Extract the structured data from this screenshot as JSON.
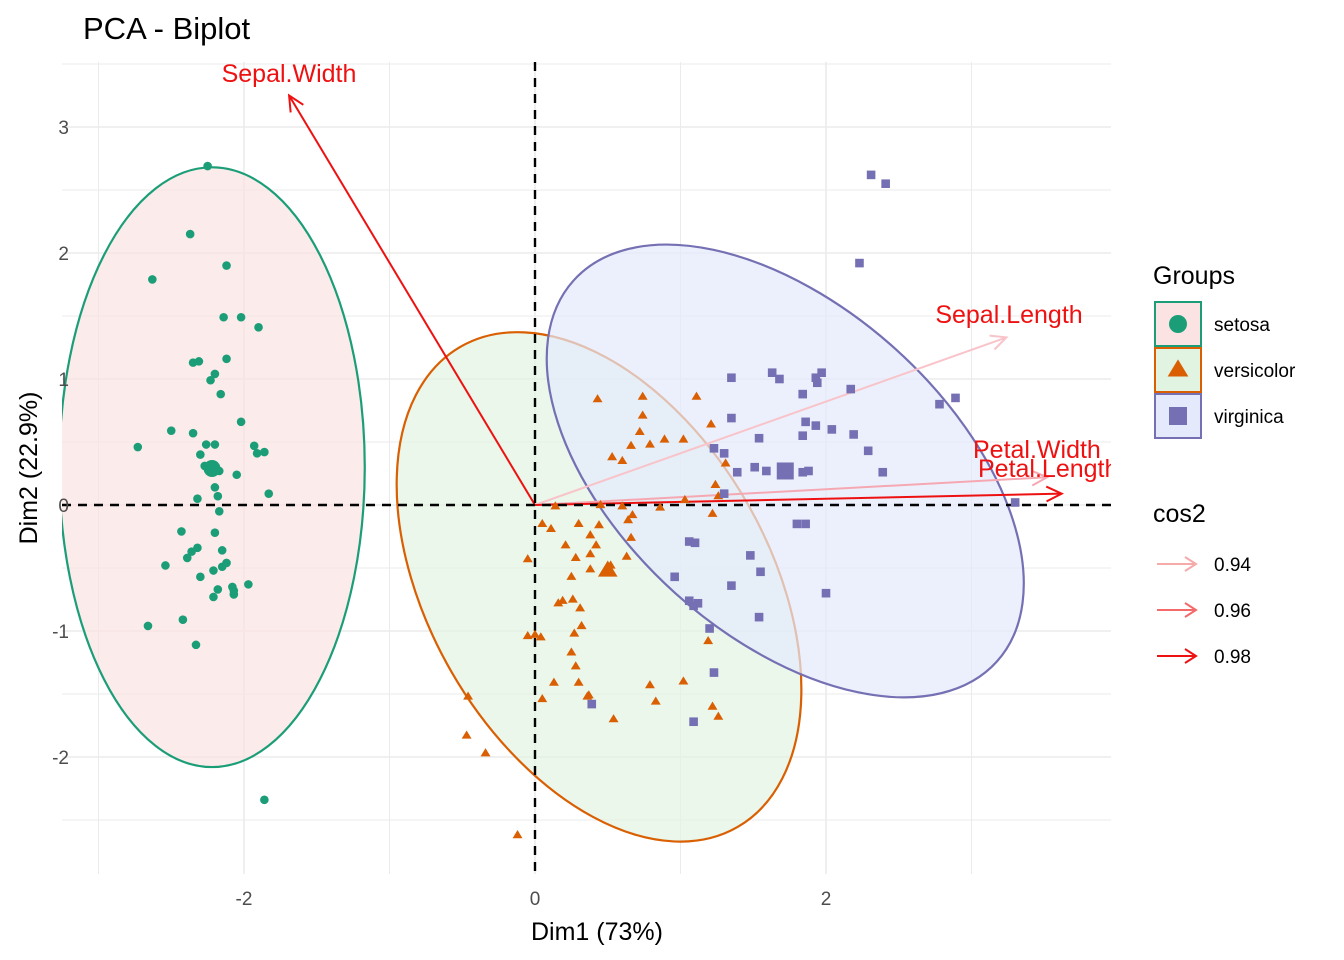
{
  "chart_data": {
    "type": "scatter",
    "title": "PCA - Biplot",
    "xlabel": "Dim1 (73%)",
    "ylabel": "Dim2 (22.9%)",
    "xlim": [
      -3.02,
      3.91
    ],
    "ylim": [
      -2.96,
      3.5
    ],
    "x_ticks": [
      -2,
      0,
      2
    ],
    "y_ticks": [
      -2,
      -1,
      0,
      1,
      2,
      3
    ],
    "grid": true,
    "reference_lines": {
      "x": 0,
      "y": 0
    },
    "legend_position": "right",
    "groups_legend": {
      "title": "Groups",
      "items": [
        {
          "name": "setosa",
          "shape": "circle",
          "color": "#1b9e77",
          "fill": "#fbe3e3"
        },
        {
          "name": "versicolor",
          "shape": "triangle",
          "color": "#d95f02",
          "fill": "#e1f3e1"
        },
        {
          "name": "virginica",
          "shape": "square",
          "color": "#7570b3",
          "fill": "#e4eafc"
        }
      ]
    },
    "cos2_legend": {
      "title": "cos2",
      "items": [
        {
          "label": "0.94",
          "color": "#f7aaaa"
        },
        {
          "label": "0.96",
          "color": "#f46a6a"
        },
        {
          "label": "0.98",
          "color": "#ee1111"
        }
      ]
    },
    "series": [
      {
        "name": "setosa",
        "color": "#1b9e77",
        "centroid": [
          -2.22,
          0.29
        ],
        "ellipse": {
          "center": [
            -2.22,
            0.3
          ],
          "rx": 1.05,
          "ry": 2.38,
          "angle": 0
        },
        "points": [
          [
            -2.25,
            2.69
          ],
          [
            -2.37,
            2.15
          ],
          [
            -2.63,
            1.79
          ],
          [
            -2.12,
            1.9
          ],
          [
            -2.14,
            1.49
          ],
          [
            -2.02,
            1.49
          ],
          [
            -1.9,
            1.41
          ],
          [
            -2.12,
            1.16
          ],
          [
            -2.35,
            1.13
          ],
          [
            -2.31,
            1.14
          ],
          [
            -2.2,
            1.04
          ],
          [
            -2.23,
            0.99
          ],
          [
            -2.16,
            0.88
          ],
          [
            -2.02,
            0.66
          ],
          [
            -2.5,
            0.59
          ],
          [
            -2.35,
            0.57
          ],
          [
            -1.93,
            0.47
          ],
          [
            -2.2,
            0.48
          ],
          [
            -2.26,
            0.48
          ],
          [
            -1.86,
            0.42
          ],
          [
            -1.91,
            0.41
          ],
          [
            -2.3,
            0.4
          ],
          [
            -2.73,
            0.46
          ],
          [
            -2.27,
            0.31
          ],
          [
            -2.17,
            0.27
          ],
          [
            -2.05,
            0.24
          ],
          [
            -2.2,
            0.14
          ],
          [
            -2.32,
            0.05
          ],
          [
            -2.18,
            0.07
          ],
          [
            -1.83,
            0.09
          ],
          [
            -2.17,
            -0.05
          ],
          [
            -2.43,
            -0.21
          ],
          [
            -2.2,
            -0.22
          ],
          [
            -2.32,
            -0.34
          ],
          [
            -2.15,
            -0.36
          ],
          [
            -2.36,
            -0.37
          ],
          [
            -2.39,
            -0.42
          ],
          [
            -2.12,
            -0.46
          ],
          [
            -2.15,
            -0.49
          ],
          [
            -2.54,
            -0.48
          ],
          [
            -2.21,
            -0.52
          ],
          [
            -2.3,
            -0.57
          ],
          [
            -2.08,
            -0.65
          ],
          [
            -2.18,
            -0.67
          ],
          [
            -2.07,
            -0.68
          ],
          [
            -1.97,
            -0.63
          ],
          [
            -2.21,
            -0.73
          ],
          [
            -2.07,
            -0.71
          ],
          [
            -2.42,
            -0.91
          ],
          [
            -2.66,
            -0.96
          ],
          [
            -2.33,
            -1.11
          ],
          [
            -1.86,
            -2.34
          ]
        ]
      },
      {
        "name": "versicolor",
        "color": "#d95f02",
        "centroid": [
          0.5,
          -0.52
        ],
        "ellipse": {
          "center": [
            0.44,
            -0.65
          ],
          "rx": 1.17,
          "ry": 2.2,
          "angle": 30
        },
        "points": [
          [
            0.43,
            0.84
          ],
          [
            0.74,
            0.86
          ],
          [
            1.11,
            0.86
          ],
          [
            0.74,
            0.71
          ],
          [
            0.72,
            0.58
          ],
          [
            0.79,
            0.48
          ],
          [
            0.89,
            0.52
          ],
          [
            1.02,
            0.52
          ],
          [
            1.21,
            0.64
          ],
          [
            0.66,
            0.47
          ],
          [
            0.53,
            0.38
          ],
          [
            0.6,
            0.35
          ],
          [
            1.31,
            0.33
          ],
          [
            1.24,
            0.16
          ],
          [
            1.26,
            0.07
          ],
          [
            1.03,
            0.04
          ],
          [
            0.86,
            -0.02
          ],
          [
            0.6,
            -0.01
          ],
          [
            0.45,
            0.0
          ],
          [
            0.14,
            -0.01
          ],
          [
            0.67,
            -0.08
          ],
          [
            1.22,
            -0.07
          ],
          [
            0.64,
            -0.12
          ],
          [
            0.44,
            -0.16
          ],
          [
            0.05,
            -0.15
          ],
          [
            0.3,
            -0.15
          ],
          [
            0.38,
            -0.24
          ],
          [
            0.11,
            -0.19
          ],
          [
            0.66,
            -0.26
          ],
          [
            0.21,
            -0.32
          ],
          [
            0.42,
            -0.32
          ],
          [
            0.38,
            -0.39
          ],
          [
            0.28,
            -0.42
          ],
          [
            -0.05,
            -0.43
          ],
          [
            0.63,
            -0.41
          ],
          [
            0.52,
            -0.48
          ],
          [
            0.25,
            -0.57
          ],
          [
            0.38,
            -0.51
          ],
          [
            0.26,
            -0.75
          ],
          [
            0.19,
            -0.76
          ],
          [
            0.31,
            -0.82
          ],
          [
            0.16,
            -0.78
          ],
          [
            0.32,
            -0.96
          ],
          [
            0.27,
            -1.02
          ],
          [
            0.0,
            -1.03
          ],
          [
            -0.05,
            -1.04
          ],
          [
            0.04,
            -1.05
          ],
          [
            1.19,
            -1.08
          ],
          [
            0.25,
            -1.17
          ],
          [
            0.3,
            -1.41
          ],
          [
            0.13,
            -1.41
          ],
          [
            0.28,
            -1.28
          ],
          [
            1.02,
            -1.4
          ],
          [
            0.79,
            -1.43
          ],
          [
            0.37,
            -1.51
          ],
          [
            0.05,
            -1.54
          ],
          [
            -0.46,
            -1.52
          ],
          [
            0.36,
            -1.52
          ],
          [
            0.83,
            -1.56
          ],
          [
            0.54,
            -1.7
          ],
          [
            1.22,
            -1.6
          ],
          [
            1.26,
            -1.68
          ],
          [
            -0.47,
            -1.83
          ],
          [
            -0.34,
            -1.97
          ],
          [
            -0.12,
            -2.62
          ]
        ]
      },
      {
        "name": "virginica",
        "color": "#7570b3",
        "centroid": [
          1.72,
          0.27
        ],
        "ellipse": {
          "center": [
            1.72,
            0.27
          ],
          "rx": 1.13,
          "ry": 2.26,
          "angle": 48
        },
        "points": [
          [
            2.31,
            2.62
          ],
          [
            2.41,
            2.55
          ],
          [
            2.23,
            1.92
          ],
          [
            1.97,
            1.05
          ],
          [
            1.35,
            1.01
          ],
          [
            1.63,
            1.05
          ],
          [
            1.93,
            1.01
          ],
          [
            1.68,
            1.0
          ],
          [
            1.94,
            0.97
          ],
          [
            1.84,
            0.88
          ],
          [
            2.89,
            0.85
          ],
          [
            2.78,
            0.8
          ],
          [
            2.17,
            0.92
          ],
          [
            1.86,
            0.66
          ],
          [
            1.35,
            0.69
          ],
          [
            1.93,
            0.63
          ],
          [
            2.04,
            0.6
          ],
          [
            2.19,
            0.56
          ],
          [
            1.84,
            0.55
          ],
          [
            1.54,
            0.53
          ],
          [
            1.23,
            0.45
          ],
          [
            1.3,
            0.41
          ],
          [
            2.29,
            0.43
          ],
          [
            1.51,
            0.3
          ],
          [
            1.39,
            0.26
          ],
          [
            1.59,
            0.27
          ],
          [
            1.84,
            0.26
          ],
          [
            1.88,
            0.27
          ],
          [
            2.39,
            0.26
          ],
          [
            1.3,
            0.09
          ],
          [
            3.3,
            0.02
          ],
          [
            1.06,
            -0.29
          ],
          [
            1.1,
            -0.3
          ],
          [
            1.8,
            -0.15
          ],
          [
            1.86,
            -0.15
          ],
          [
            1.48,
            -0.4
          ],
          [
            1.55,
            -0.53
          ],
          [
            1.35,
            -0.64
          ],
          [
            1.06,
            -0.76
          ],
          [
            1.09,
            -0.8
          ],
          [
            0.96,
            -0.57
          ],
          [
            1.12,
            -0.78
          ],
          [
            1.2,
            -0.98
          ],
          [
            1.54,
            -0.89
          ],
          [
            1.23,
            -1.33
          ],
          [
            2.0,
            -0.7
          ],
          [
            0.39,
            -1.58
          ],
          [
            1.09,
            -1.72
          ]
        ]
      }
    ],
    "variables": [
      {
        "name": "Sepal.Width",
        "x": -1.69,
        "y": 3.25,
        "cos2": 0.98,
        "color": "#ee1111"
      },
      {
        "name": "Sepal.Length",
        "x": 3.24,
        "y": 1.33,
        "cos2": 0.94,
        "color": "#f8c4ca"
      },
      {
        "name": "Petal.Width",
        "x": 3.52,
        "y": 0.22,
        "cos2": 0.94,
        "color": "#f5a8b2"
      },
      {
        "name": "Petal.Length",
        "x": 3.62,
        "y": 0.09,
        "cos2": 0.98,
        "color": "#ee1111"
      }
    ]
  }
}
